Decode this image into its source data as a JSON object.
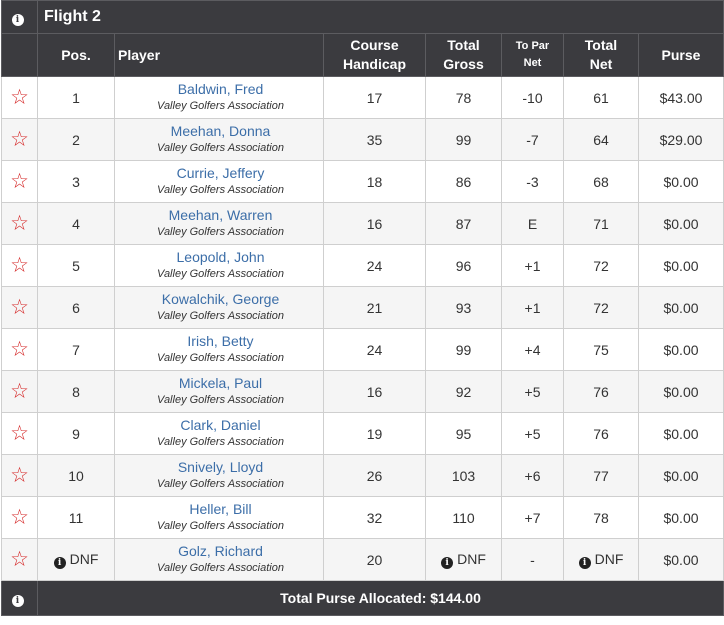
{
  "flight": {
    "title": "Flight 2"
  },
  "columns": {
    "pos": "Pos.",
    "player": "Player",
    "course_handicap_1": "Course",
    "course_handicap_2": "Handicap",
    "total_gross_1": "Total",
    "total_gross_2": "Gross",
    "to_par_net_1": "To Par",
    "to_par_net_2": "Net",
    "total_net_1": "Total",
    "total_net_2": "Net",
    "purse": "Purse"
  },
  "rows": [
    {
      "pos": "1",
      "name": "Baldwin, Fred",
      "assoc": "Valley Golfers Association",
      "handicap": "17",
      "gross": "78",
      "topar": "-10",
      "net": "61",
      "purse": "$43.00"
    },
    {
      "pos": "2",
      "name": "Meehan, Donna",
      "assoc": "Valley Golfers Association",
      "handicap": "35",
      "gross": "99",
      "topar": "-7",
      "net": "64",
      "purse": "$29.00"
    },
    {
      "pos": "3",
      "name": "Currie, Jeffery",
      "assoc": "Valley Golfers Association",
      "handicap": "18",
      "gross": "86",
      "topar": "-3",
      "net": "68",
      "purse": "$0.00"
    },
    {
      "pos": "4",
      "name": "Meehan, Warren",
      "assoc": "Valley Golfers Association",
      "handicap": "16",
      "gross": "87",
      "topar": "E",
      "net": "71",
      "purse": "$0.00"
    },
    {
      "pos": "5",
      "name": "Leopold, John",
      "assoc": "Valley Golfers Association",
      "handicap": "24",
      "gross": "96",
      "topar": "+1",
      "net": "72",
      "purse": "$0.00"
    },
    {
      "pos": "6",
      "name": "Kowalchik, George",
      "assoc": "Valley Golfers Association",
      "handicap": "21",
      "gross": "93",
      "topar": "+1",
      "net": "72",
      "purse": "$0.00"
    },
    {
      "pos": "7",
      "name": "Irish, Betty",
      "assoc": "Valley Golfers Association",
      "handicap": "24",
      "gross": "99",
      "topar": "+4",
      "net": "75",
      "purse": "$0.00"
    },
    {
      "pos": "8",
      "name": "Mickela, Paul",
      "assoc": "Valley Golfers Association",
      "handicap": "16",
      "gross": "92",
      "topar": "+5",
      "net": "76",
      "purse": "$0.00"
    },
    {
      "pos": "9",
      "name": "Clark, Daniel",
      "assoc": "Valley Golfers Association",
      "handicap": "19",
      "gross": "95",
      "topar": "+5",
      "net": "76",
      "purse": "$0.00"
    },
    {
      "pos": "10",
      "name": "Snively, Lloyd",
      "assoc": "Valley Golfers Association",
      "handicap": "26",
      "gross": "103",
      "topar": "+6",
      "net": "77",
      "purse": "$0.00"
    },
    {
      "pos": "11",
      "name": "Heller, Bill",
      "assoc": "Valley Golfers Association",
      "handicap": "32",
      "gross": "110",
      "topar": "+7",
      "net": "78",
      "purse": "$0.00"
    },
    {
      "pos": "DNF",
      "name": "Golz, Richard",
      "assoc": "Valley Golfers Association",
      "handicap": "20",
      "gross": "DNF",
      "topar": "-",
      "net": "DNF",
      "purse": "$0.00"
    }
  ],
  "footer": {
    "total_purse": "Total Purse Allocated: $144.00"
  },
  "icons": {
    "info": "info-circle-icon",
    "favorite": "star-outline-icon"
  },
  "colors": {
    "header_bg": "#3b3b3f",
    "under_par": "#cc1a1a",
    "even_par": "#1f9a1f",
    "over_par": "#7a26a6",
    "link": "#3c6ea8",
    "star": "#d62b2b"
  }
}
